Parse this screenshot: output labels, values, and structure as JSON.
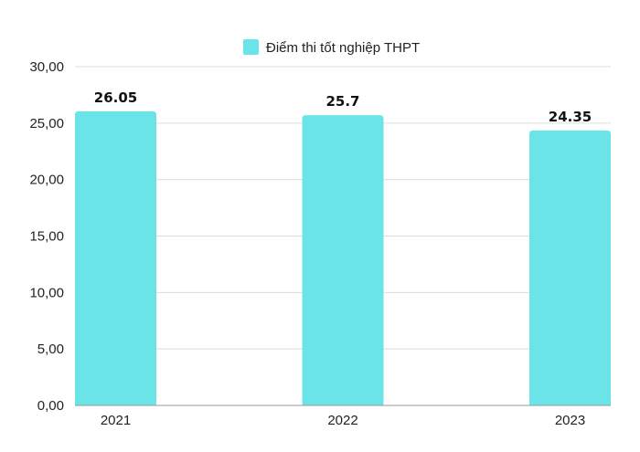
{
  "chart_data": {
    "type": "bar",
    "categories": [
      "2021",
      "2022",
      "2023"
    ],
    "series": [
      {
        "name": "Điểm thi tốt nghiệp THPT",
        "values": [
          26.05,
          25.7,
          24.35
        ],
        "color": "#6be4e8"
      }
    ],
    "data_labels": [
      "26.05",
      "25.7",
      "24.35"
    ],
    "y_ticks": [
      "0,00",
      "5,00",
      "10,00",
      "15,00",
      "20,00",
      "25,00",
      "30,00"
    ],
    "ylim": [
      0,
      30
    ],
    "grid": true,
    "legend_position": "top-center",
    "title": "",
    "xlabel": "",
    "ylabel": ""
  }
}
